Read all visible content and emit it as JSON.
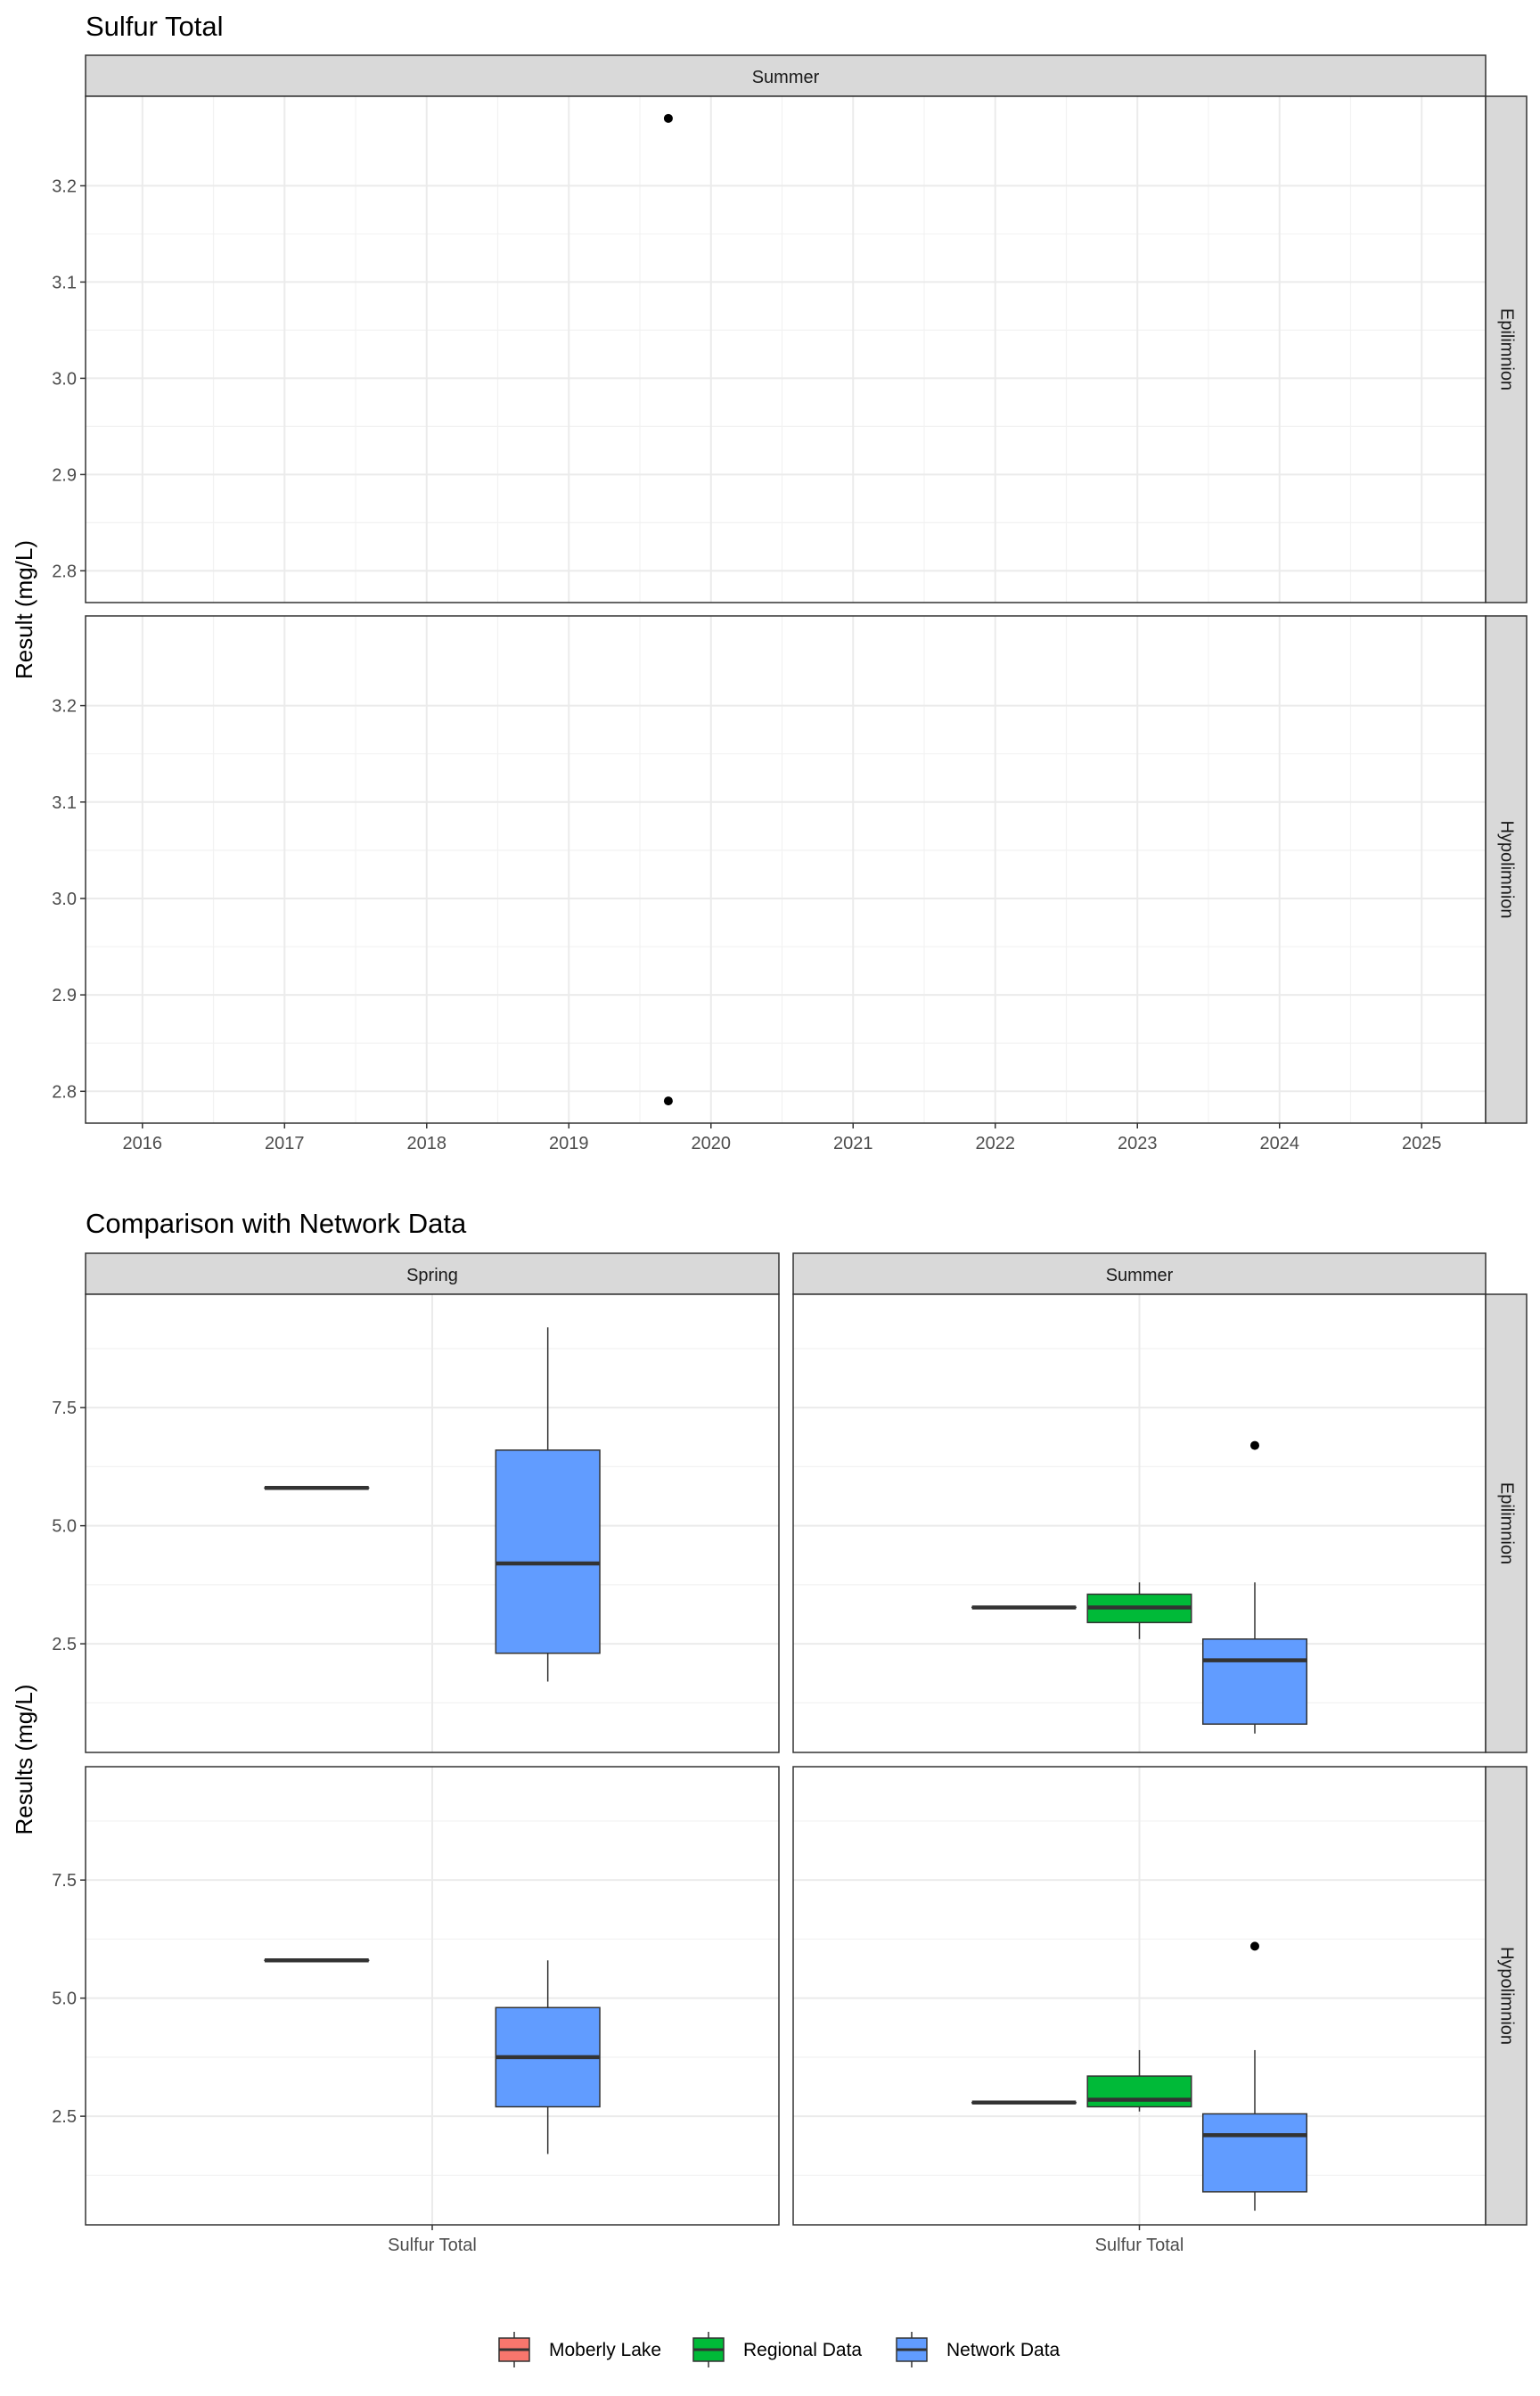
{
  "chart_data": [
    {
      "type": "scatter",
      "title": "Sulfur Total",
      "ylabel": "Result (mg/L)",
      "xlabel": "",
      "column_facets": [
        "Summer"
      ],
      "row_facets": [
        "Epilimnion",
        "Hypolimnion"
      ],
      "x_ticks": [
        "2016",
        "2017",
        "2018",
        "2019",
        "2020",
        "2021",
        "2022",
        "2023",
        "2024",
        "2025"
      ],
      "xlim": [
        2015.6,
        2025.45
      ],
      "y_ticks": [
        "2.8",
        "2.9",
        "3.0",
        "3.1",
        "3.2"
      ],
      "ylim": [
        2.767,
        3.293
      ],
      "grid": true,
      "points": [
        {
          "column": "Summer",
          "row": "Epilimnion",
          "x": 2019.7,
          "y": 3.27
        },
        {
          "column": "Summer",
          "row": "Hypolimnion",
          "x": 2019.7,
          "y": 2.79
        }
      ]
    },
    {
      "type": "box",
      "title": "Comparison with Network Data",
      "ylabel": "Results (mg/L)",
      "xlabel": "",
      "column_facets": [
        "Spring",
        "Summer"
      ],
      "row_facets": [
        "Epilimnion",
        "Hypolimnion"
      ],
      "categories": [
        "Sulfur Total"
      ],
      "y_ticks": [
        "2.5",
        "5.0",
        "7.5"
      ],
      "ylim": [
        0.2,
        9.9
      ],
      "grid": true,
      "legend": {
        "position": "bottom",
        "entries": [
          {
            "name": "Moberly Lake",
            "color": "#F8766D"
          },
          {
            "name": "Regional Data",
            "color": "#00BA38"
          },
          {
            "name": "Network Data",
            "color": "#619CFF"
          }
        ]
      },
      "boxes": [
        {
          "column": "Spring",
          "row": "Epilimnion",
          "group": "Moberly Lake",
          "min": 5.8,
          "q1": 5.8,
          "median": 5.8,
          "q3": 5.8,
          "max": 5.8,
          "outliers": []
        },
        {
          "column": "Spring",
          "row": "Epilimnion",
          "group": "Network Data",
          "min": 1.7,
          "q1": 2.3,
          "median": 4.2,
          "q3": 6.6,
          "max": 9.2,
          "outliers": []
        },
        {
          "column": "Summer",
          "row": "Epilimnion",
          "group": "Moberly Lake",
          "min": 3.27,
          "q1": 3.27,
          "median": 3.27,
          "q3": 3.27,
          "max": 3.27,
          "outliers": []
        },
        {
          "column": "Summer",
          "row": "Epilimnion",
          "group": "Regional Data",
          "min": 2.6,
          "q1": 2.95,
          "median": 3.27,
          "q3": 3.55,
          "max": 3.8,
          "outliers": []
        },
        {
          "column": "Summer",
          "row": "Epilimnion",
          "group": "Network Data",
          "min": 0.6,
          "q1": 0.8,
          "median": 2.15,
          "q3": 2.6,
          "max": 3.8,
          "outliers": [
            6.7
          ]
        },
        {
          "column": "Spring",
          "row": "Hypolimnion",
          "group": "Moberly Lake",
          "min": 5.8,
          "q1": 5.8,
          "median": 5.8,
          "q3": 5.8,
          "max": 5.8,
          "outliers": []
        },
        {
          "column": "Spring",
          "row": "Hypolimnion",
          "group": "Network Data",
          "min": 1.7,
          "q1": 2.7,
          "median": 3.75,
          "q3": 4.8,
          "max": 5.8,
          "outliers": []
        },
        {
          "column": "Summer",
          "row": "Hypolimnion",
          "group": "Moberly Lake",
          "min": 2.79,
          "q1": 2.79,
          "median": 2.79,
          "q3": 2.79,
          "max": 2.79,
          "outliers": []
        },
        {
          "column": "Summer",
          "row": "Hypolimnion",
          "group": "Regional Data",
          "min": 2.6,
          "q1": 2.7,
          "median": 2.85,
          "q3": 3.35,
          "max": 3.9,
          "outliers": []
        },
        {
          "column": "Summer",
          "row": "Hypolimnion",
          "group": "Network Data",
          "min": 0.5,
          "q1": 0.9,
          "median": 2.1,
          "q3": 2.55,
          "max": 3.9,
          "outliers": [
            6.1
          ]
        }
      ]
    }
  ]
}
